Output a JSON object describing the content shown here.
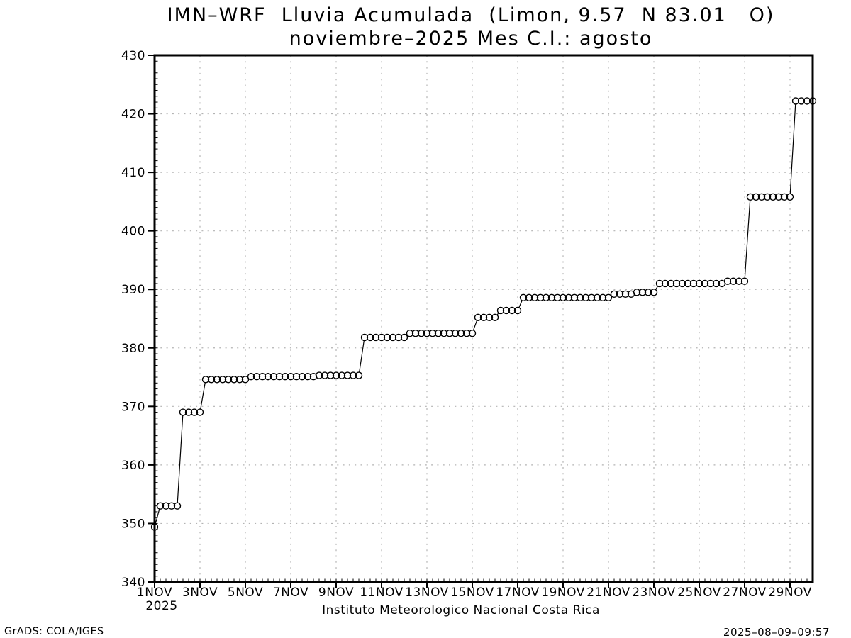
{
  "footer": {
    "caption": "Instituto Meteorologico Nacional Costa Rica",
    "credit": "GrADS: COLA/IGES",
    "timestamp": "2025–08–09–09:57"
  },
  "chart_data": {
    "type": "line",
    "title": "IMN–WRF  Lluvia Acumulada  (Limon, 9.57  N 83.01   O)",
    "subtitle": "noviembre–2025 Mes C.I.: agosto",
    "xlabel": "",
    "ylabel": "",
    "x_axis_year_label": "2025",
    "xlim": [
      1,
      30
    ],
    "x_start_day": 1,
    "x_step_days": 0.25,
    "ylim": [
      340,
      430
    ],
    "y_tick_step": 10,
    "grid": "dotted",
    "legend": "none",
    "marker": "open-circle",
    "line_color": "#000000",
    "grid_color": "#b3b3b3",
    "x_ticks": [
      {
        "day": 1,
        "label": "1NOV"
      },
      {
        "day": 3,
        "label": "3NOV"
      },
      {
        "day": 5,
        "label": "5NOV"
      },
      {
        "day": 7,
        "label": "7NOV"
      },
      {
        "day": 9,
        "label": "9NOV"
      },
      {
        "day": 11,
        "label": "11NOV"
      },
      {
        "day": 13,
        "label": "13NOV"
      },
      {
        "day": 15,
        "label": "15NOV"
      },
      {
        "day": 17,
        "label": "17NOV"
      },
      {
        "day": 19,
        "label": "19NOV"
      },
      {
        "day": 21,
        "label": "21NOV"
      },
      {
        "day": 23,
        "label": "23NOV"
      },
      {
        "day": 25,
        "label": "25NOV"
      },
      {
        "day": 27,
        "label": "27NOV"
      },
      {
        "day": 29,
        "label": "29NOV"
      }
    ],
    "series": [
      {
        "name": "lluvia acumulada (mm)",
        "values": [
          349.4,
          353,
          353,
          353,
          353,
          369,
          369,
          369,
          369,
          374.6,
          374.6,
          374.6,
          374.6,
          374.6,
          374.6,
          374.6,
          374.6,
          375.1,
          375.1,
          375.1,
          375.1,
          375.1,
          375.1,
          375.1,
          375.1,
          375.1,
          375.1,
          375.1,
          375.1,
          375.3,
          375.3,
          375.3,
          375.3,
          375.3,
          375.3,
          375.3,
          375.3,
          381.8,
          381.8,
          381.8,
          381.8,
          381.8,
          381.8,
          381.8,
          381.8,
          382.5,
          382.5,
          382.5,
          382.5,
          382.5,
          382.5,
          382.5,
          382.5,
          382.5,
          382.5,
          382.5,
          382.5,
          385.2,
          385.2,
          385.2,
          385.2,
          386.4,
          386.4,
          386.4,
          386.4,
          388.6,
          388.6,
          388.6,
          388.6,
          388.6,
          388.6,
          388.6,
          388.6,
          388.6,
          388.6,
          388.6,
          388.6,
          388.6,
          388.6,
          388.6,
          388.6,
          389.2,
          389.2,
          389.2,
          389.2,
          389.5,
          389.5,
          389.5,
          389.5,
          391,
          391,
          391,
          391,
          391,
          391,
          391,
          391,
          391,
          391,
          391,
          391,
          391.4,
          391.4,
          391.4,
          391.4,
          405.8,
          405.8,
          405.8,
          405.8,
          405.8,
          405.8,
          405.8,
          405.8,
          422.2,
          422.2,
          422.2,
          422.2
        ]
      }
    ]
  }
}
